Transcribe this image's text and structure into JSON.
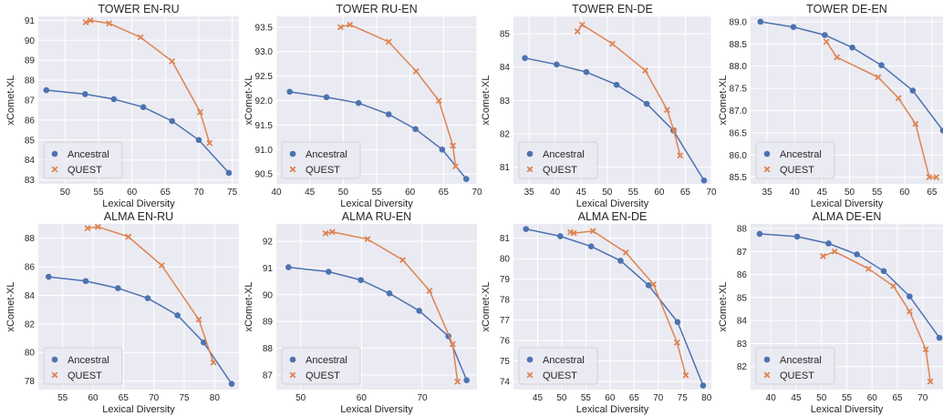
{
  "figure": {
    "colors": {
      "ancestral": "#4c72b0",
      "quest": "#dd8452",
      "panel_bg": "#eaeaf2",
      "grid": "#ffffff"
    },
    "legend_labels": [
      "Ancestral",
      "QUEST"
    ]
  },
  "chart_data": [
    {
      "type": "line",
      "title": "TOWER EN-RU",
      "xlabel": "Lexical Diversity",
      "ylabel": "xComet-XL",
      "xlim": [
        46,
        76
      ],
      "ylim": [
        82.8,
        91.2
      ],
      "xticks": [
        50,
        55,
        60,
        65,
        70,
        75
      ],
      "yticks": [
        83,
        84,
        85,
        86,
        87,
        88,
        89,
        90,
        91
      ],
      "ytick_decimals": 0,
      "grid": true,
      "legend_position": "lower-left",
      "series": [
        {
          "name": "Ancestral",
          "marker": "circle",
          "x": [
            47.2,
            53.0,
            57.3,
            61.7,
            66.0,
            70.0,
            74.5
          ],
          "y": [
            87.5,
            87.3,
            87.05,
            86.65,
            85.95,
            85.0,
            83.35
          ]
        },
        {
          "name": "QUEST",
          "marker": "x",
          "x": [
            53.1,
            53.8,
            56.6,
            61.3,
            66.0,
            70.2,
            71.6
          ],
          "y": [
            90.9,
            91.0,
            90.85,
            90.15,
            88.95,
            86.4,
            84.85
          ]
        }
      ]
    },
    {
      "type": "line",
      "title": "TOWER RU-EN",
      "xlabel": "Lexical Diversity",
      "ylabel": "xComet-XL",
      "xlim": [
        40,
        70
      ],
      "ylim": [
        90.3,
        93.72
      ],
      "xticks": [
        40,
        45,
        50,
        55,
        60,
        65,
        70
      ],
      "yticks": [
        90.5,
        91.0,
        91.5,
        92.0,
        92.5,
        93.0,
        93.5
      ],
      "ytick_decimals": 1,
      "grid": true,
      "legend_position": "lower-left",
      "series": [
        {
          "name": "Ancestral",
          "marker": "circle",
          "x": [
            42.0,
            47.5,
            52.3,
            56.8,
            60.8,
            64.8,
            68.4
          ],
          "y": [
            92.18,
            92.07,
            91.95,
            91.72,
            91.42,
            91.0,
            90.4
          ]
        },
        {
          "name": "QUEST",
          "marker": "x",
          "x": [
            49.6,
            51.0,
            56.8,
            60.9,
            64.3,
            66.4,
            66.8
          ],
          "y": [
            93.5,
            93.55,
            93.2,
            92.6,
            92.0,
            91.08,
            90.66
          ]
        }
      ]
    },
    {
      "type": "line",
      "title": "TOWER EN-DE",
      "xlabel": "Lexical Diversity",
      "ylabel": "xComet-XL",
      "xlim": [
        32,
        70
      ],
      "ylim": [
        80.5,
        85.52
      ],
      "xticks": [
        35,
        40,
        45,
        50,
        55,
        60,
        65,
        70
      ],
      "yticks": [
        81,
        82,
        83,
        84,
        85
      ],
      "ytick_decimals": 0,
      "grid": true,
      "legend_position": "lower-left",
      "series": [
        {
          "name": "Ancestral",
          "marker": "circle",
          "x": [
            34.2,
            40.3,
            46.0,
            51.8,
            57.6,
            62.7,
            68.6
          ],
          "y": [
            84.27,
            84.08,
            83.85,
            83.47,
            82.9,
            82.1,
            80.6
          ]
        },
        {
          "name": "QUEST",
          "marker": "x",
          "x": [
            44.3,
            45.2,
            51.0,
            57.3,
            61.5,
            62.8,
            64.0
          ],
          "y": [
            85.07,
            85.27,
            84.7,
            83.9,
            82.72,
            82.1,
            81.35
          ]
        }
      ]
    },
    {
      "type": "line",
      "title": "TOWER DE-EN",
      "xlabel": "Lexical Diversity",
      "ylabel": "xComet-XL",
      "xlim": [
        32,
        67
      ],
      "ylim": [
        85.35,
        89.12
      ],
      "xticks": [
        35,
        40,
        45,
        50,
        55,
        60,
        65
      ],
      "yticks": [
        85.5,
        86.0,
        86.5,
        87.0,
        87.5,
        88.0,
        88.5,
        89.0
      ],
      "ytick_decimals": 1,
      "grid": true,
      "legend_position": "lower-left",
      "series": [
        {
          "name": "Ancestral",
          "marker": "circle",
          "x": [
            33.8,
            39.8,
            45.5,
            50.5,
            55.8,
            61.5,
            67.0
          ],
          "y": [
            89.0,
            88.88,
            88.7,
            88.42,
            88.02,
            87.45,
            86.55
          ]
        },
        {
          "name": "QUEST",
          "marker": "x",
          "x": [
            45.8,
            47.7,
            55.2,
            58.9,
            62.0,
            64.5,
            65.8
          ],
          "y": [
            88.55,
            88.2,
            87.75,
            87.28,
            86.7,
            85.5,
            85.5
          ]
        }
      ]
    },
    {
      "type": "line",
      "title": "ALMA EN-RU",
      "xlabel": "Lexical Diversity",
      "ylabel": "xComet-XL",
      "xlim": [
        51,
        84
      ],
      "ylim": [
        77.4,
        89.0
      ],
      "xticks": [
        55,
        60,
        65,
        70,
        75,
        80
      ],
      "yticks": [
        78,
        80,
        82,
        84,
        86,
        88
      ],
      "ytick_decimals": 0,
      "grid": true,
      "legend_position": "lower-left",
      "series": [
        {
          "name": "Ancestral",
          "marker": "circle",
          "x": [
            52.7,
            58.8,
            64.1,
            69.0,
            73.9,
            78.2,
            82.8
          ],
          "y": [
            85.3,
            85.0,
            84.5,
            83.8,
            82.6,
            80.7,
            77.8
          ]
        },
        {
          "name": "QUEST",
          "marker": "x",
          "x": [
            59.1,
            60.8,
            65.8,
            71.3,
            77.4,
            79.8
          ],
          "y": [
            88.7,
            88.8,
            88.1,
            86.1,
            82.3,
            79.3
          ]
        }
      ]
    },
    {
      "type": "line",
      "title": "ALMA RU-EN",
      "xlabel": "Lexical Diversity",
      "ylabel": "xComet-XL",
      "xlim": [
        46,
        79
      ],
      "ylim": [
        86.45,
        92.65
      ],
      "xticks": [
        50,
        60,
        70
      ],
      "yticks": [
        87,
        88,
        89,
        90,
        91,
        92
      ],
      "ytick_decimals": 0,
      "grid": true,
      "legend_position": "lower-left",
      "series": [
        {
          "name": "Ancestral",
          "marker": "circle",
          "x": [
            48.0,
            54.6,
            59.9,
            64.6,
            69.5,
            74.3,
            77.3
          ],
          "y": [
            91.03,
            90.86,
            90.55,
            90.05,
            89.4,
            88.45,
            86.8
          ]
        },
        {
          "name": "QUEST",
          "marker": "x",
          "x": [
            54.1,
            55.2,
            61.0,
            66.8,
            71.2,
            75.0,
            75.8
          ],
          "y": [
            92.3,
            92.35,
            92.08,
            91.3,
            90.15,
            88.15,
            86.75
          ]
        }
      ]
    },
    {
      "type": "line",
      "title": "ALMA EN-DE",
      "xlabel": "Lexical Diversity",
      "ylabel": "xComet-XL",
      "xlim": [
        40,
        81
      ],
      "ylim": [
        73.6,
        81.7
      ],
      "xticks": [
        45,
        50,
        55,
        60,
        65,
        70,
        75,
        80
      ],
      "yticks": [
        74,
        75,
        76,
        77,
        78,
        79,
        80,
        81
      ],
      "ytick_decimals": 0,
      "grid": true,
      "legend_position": "lower-left",
      "series": [
        {
          "name": "Ancestral",
          "marker": "circle",
          "x": [
            42.6,
            49.7,
            56.1,
            62.2,
            68.0,
            74.0,
            79.3
          ],
          "y": [
            81.45,
            81.1,
            80.6,
            79.9,
            78.7,
            76.9,
            73.8
          ]
        },
        {
          "name": "QUEST",
          "marker": "x",
          "x": [
            51.8,
            52.5,
            56.5,
            63.3,
            69.0,
            73.9,
            75.7
          ],
          "y": [
            81.3,
            81.25,
            81.35,
            80.3,
            78.75,
            75.9,
            74.3
          ]
        }
      ]
    },
    {
      "type": "line",
      "title": "ALMA DE-EN",
      "xlabel": "Lexical Diversity",
      "ylabel": "xComet-XL",
      "xlim": [
        36,
        74
      ],
      "ylim": [
        81.0,
        88.2
      ],
      "xticks": [
        40,
        45,
        50,
        55,
        60,
        65,
        70
      ],
      "yticks": [
        82,
        83,
        84,
        85,
        86,
        87,
        88
      ],
      "ytick_decimals": 0,
      "grid": true,
      "legend_position": "lower-left",
      "series": [
        {
          "name": "Ancestral",
          "marker": "circle",
          "x": [
            37.8,
            45.2,
            51.4,
            57.0,
            62.3,
            67.4,
            73.3
          ],
          "y": [
            87.77,
            87.65,
            87.35,
            86.88,
            86.15,
            85.05,
            83.25
          ]
        },
        {
          "name": "QUEST",
          "marker": "x",
          "x": [
            50.3,
            52.6,
            59.3,
            64.2,
            67.4,
            70.6,
            71.5
          ],
          "y": [
            86.8,
            87.0,
            86.25,
            85.5,
            84.4,
            82.75,
            81.35
          ]
        }
      ]
    }
  ]
}
